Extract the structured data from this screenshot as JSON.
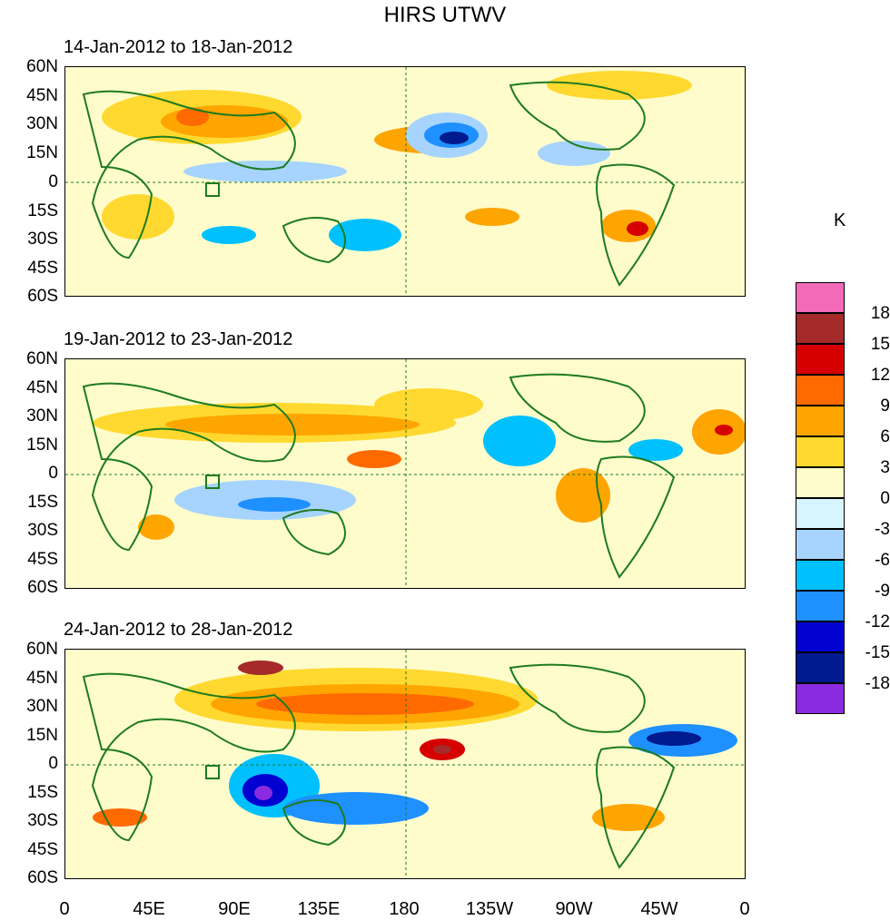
{
  "title": "HIRS UTWV",
  "panels": [
    {
      "label": "14-Jan-2012 to 18-Jan-2012"
    },
    {
      "label": "19-Jan-2012 to 23-Jan-2012"
    },
    {
      "label": "24-Jan-2012 to 28-Jan-2012"
    }
  ],
  "lat_labels": [
    "60N",
    "45N",
    "30N",
    "15N",
    "0",
    "15S",
    "30S",
    "45S",
    "60S"
  ],
  "lon_labels": [
    "0",
    "45E",
    "90E",
    "135E",
    "180",
    "135W",
    "90W",
    "45W",
    "0"
  ],
  "colorbar": {
    "unit": "K",
    "labels": [
      "18",
      "15",
      "12",
      "9",
      "6",
      "3",
      "0",
      "-3",
      "-6",
      "-9",
      "-12",
      "-15",
      "-18"
    ],
    "colors": [
      "#f36ab9",
      "#a52a2a",
      "#d70000",
      "#ff6a00",
      "#ffa500",
      "#ffd92f",
      "#fffccc",
      "#d6f5ff",
      "#a6d4ff",
      "#00c0ff",
      "#1e90ff",
      "#0000d0",
      "#001a90",
      "#8a2be2"
    ]
  },
  "map_colors": {
    "land_outline": "#1e7b1e",
    "background": "#fffccc"
  }
}
